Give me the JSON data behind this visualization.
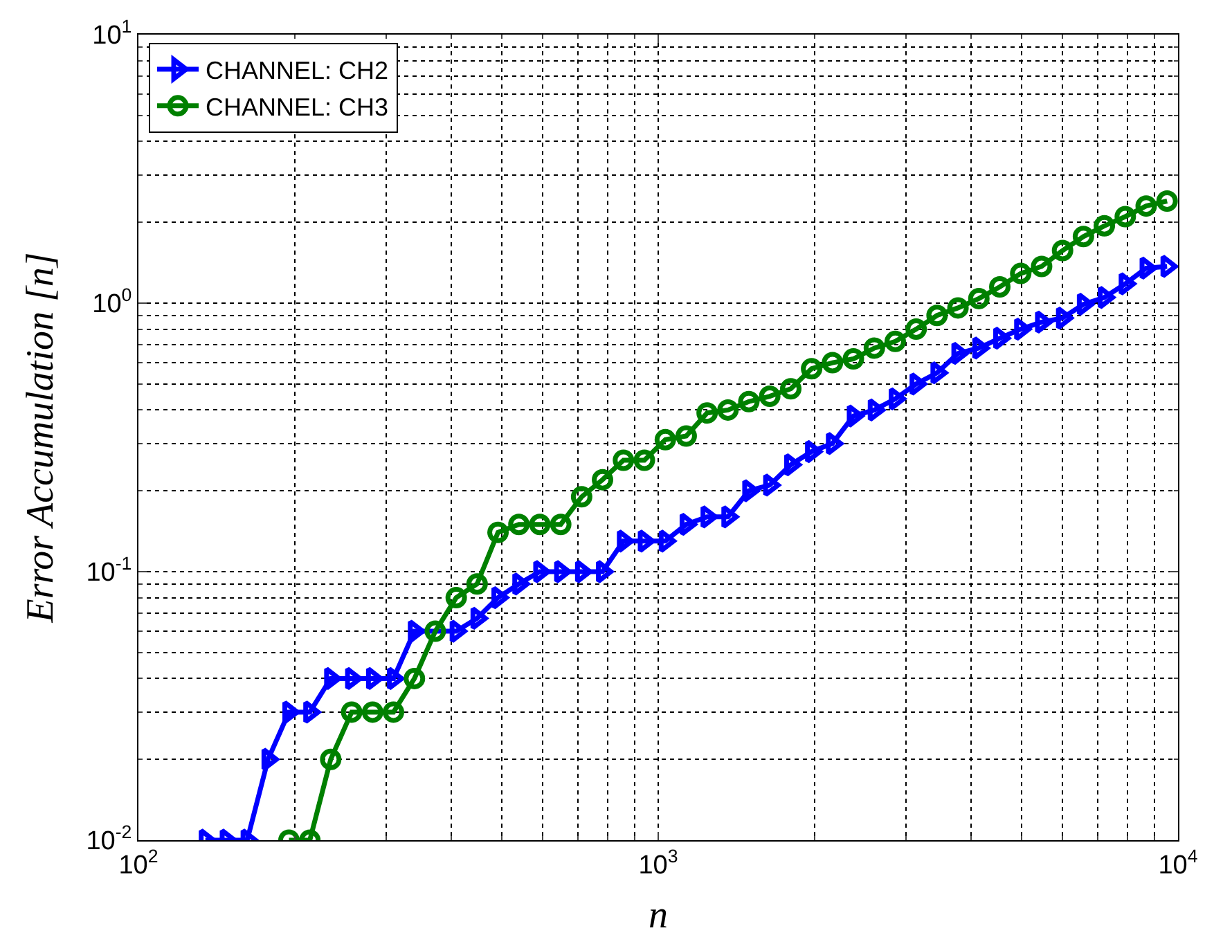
{
  "chart_data": {
    "type": "line",
    "xlabel": "n",
    "ylabel": "Error Accumulation [n]",
    "log": "xy",
    "grid": true,
    "legend": "top left",
    "line_style": "solid",
    "xlim": [
      100,
      10000
    ],
    "xticks": [
      {
        "value": 100,
        "label": "10$^{2}$"
      },
      {
        "value": 1000,
        "label": "10$^{3}$"
      },
      {
        "value": 10000,
        "label": "10$^{4}$"
      }
    ],
    "ylim": [
      0.01,
      10
    ],
    "yticks": [
      {
        "value": 0.01,
        "label": "10$^{-2}$"
      },
      {
        "value": 0.1,
        "label": "10$^{-1}$"
      },
      {
        "value": 1,
        "label": "10$^{0}$"
      },
      {
        "value": 10,
        "label": "10$^{1}$"
      }
    ],
    "series": [
      {
        "name": "CHANNEL: CH2",
        "color": "#0000ff",
        "marker": "triangle",
        "x": [
          134.5,
          147.6,
          161.9,
          177.6,
          194.8,
          213.7,
          234.4,
          257.2,
          282.2,
          309.5,
          339.6,
          372.5,
          408.7,
          448.3,
          491.8,
          539.5,
          591.9,
          649.3,
          712.3,
          781.4,
          857.3,
          940.5,
          1032,
          1132,
          1242,
          1362,
          1494,
          1639,
          1799,
          1973,
          2164,
          2374,
          2605,
          2858,
          3135,
          3439,
          3773,
          4139,
          4541,
          4982,
          5465,
          5996,
          6578,
          7216,
          7917,
          8685,
          9528
        ],
        "values": [
          0.01,
          0.01,
          0.01,
          0.02,
          0.03,
          0.03,
          0.04,
          0.04,
          0.04,
          0.04,
          0.06,
          null,
          0.06,
          0.067,
          0.08,
          0.09,
          0.1,
          0.1,
          0.1,
          0.1,
          0.13,
          0.13,
          0.13,
          0.15,
          0.16,
          0.16,
          0.2,
          0.21,
          0.25,
          0.28,
          0.3,
          0.38,
          0.4,
          0.44,
          0.5,
          0.55,
          0.65,
          0.68,
          0.74,
          0.8,
          0.85,
          0.88,
          0.99,
          1.05,
          1.18,
          1.35,
          1.37
        ]
      },
      {
        "name": "CHANNEL: CH3",
        "color": "#008000",
        "marker": "circle",
        "x": [
          194.8,
          213.7,
          234.4,
          257.2,
          282.2,
          309.5,
          339.6,
          372.5,
          408.7,
          448.3,
          491.8,
          539.5,
          591.9,
          649.3,
          712.3,
          781.4,
          857.3,
          940.5,
          1032,
          1132,
          1242,
          1362,
          1494,
          1639,
          1799,
          1973,
          2164,
          2374,
          2605,
          2858,
          3135,
          3439,
          3773,
          4139,
          4541,
          4982,
          5465,
          5996,
          6578,
          7216,
          7917,
          8685,
          9528
        ],
        "values": [
          0.01,
          0.01,
          0.02,
          0.03,
          0.03,
          0.03,
          0.04,
          0.06,
          0.08,
          0.09,
          0.14,
          0.15,
          0.15,
          0.15,
          0.19,
          0.22,
          0.26,
          0.26,
          0.31,
          0.32,
          0.39,
          0.4,
          0.43,
          0.45,
          0.48,
          0.57,
          0.6,
          0.62,
          0.68,
          0.72,
          0.8,
          0.9,
          0.96,
          1.04,
          1.15,
          1.29,
          1.37,
          1.57,
          1.77,
          1.94,
          2.1,
          2.3,
          2.4
        ]
      }
    ]
  }
}
